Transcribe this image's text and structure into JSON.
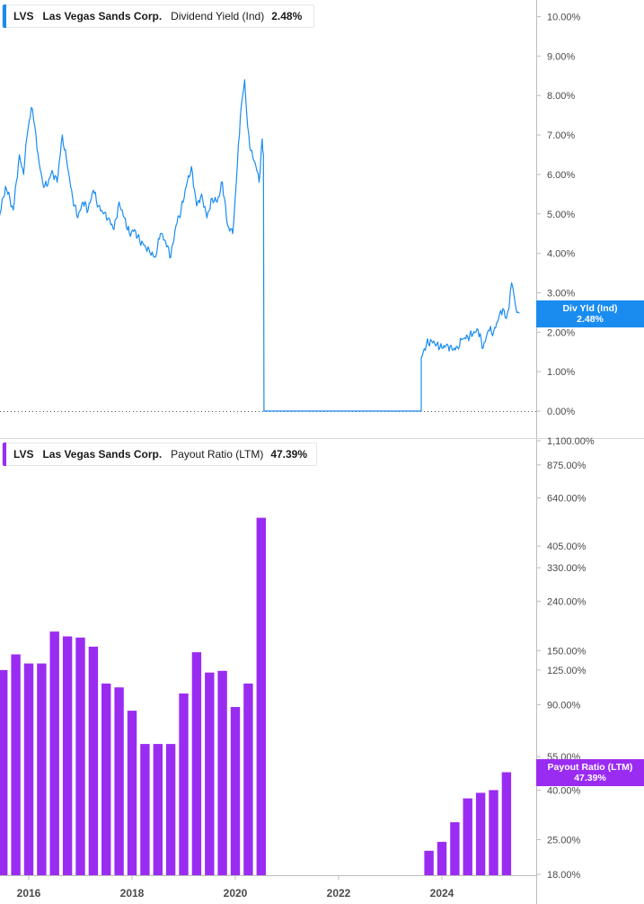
{
  "colors": {
    "yield": "#1a8cf0",
    "payout": "#9a2cf2",
    "axis": "#bdbdbd",
    "text": "#4a4a4a"
  },
  "legend_top": {
    "ticker": "LVS",
    "name": "Las Vegas Sands Corp.",
    "metric": "Dividend Yield (Ind)",
    "value": "2.48%"
  },
  "legend_bottom": {
    "ticker": "LVS",
    "name": "Las Vegas Sands Corp.",
    "metric": "Payout Ratio (LTM)",
    "value": "47.39%"
  },
  "tag_top": {
    "title": "Div Yld (Ind)",
    "value": "2.48%"
  },
  "tag_bottom": {
    "title": "Payout Ratio (LTM)",
    "value": "47.39%"
  },
  "chart_data": [
    {
      "type": "line",
      "title": "Dividend Yield (Ind)",
      "series_name": "Div Yld (Ind)",
      "y_ticks": [
        0,
        1,
        2,
        3,
        4,
        5,
        6,
        7,
        8,
        9,
        10
      ],
      "y_tick_labels": [
        "0.00%",
        "1.00%",
        "2.00%",
        "3.00%",
        "4.00%",
        "5.00%",
        "6.00%",
        "7.00%",
        "8.00%",
        "9.00%",
        "10.00%"
      ],
      "ylim": [
        0,
        10.3
      ],
      "last_value": 2.48,
      "x": [
        2015.3,
        2015.4,
        2015.55,
        2015.7,
        2015.82,
        2015.9,
        2015.97,
        2016.05,
        2016.12,
        2016.2,
        2016.27,
        2016.35,
        2016.45,
        2016.55,
        2016.65,
        2016.75,
        2016.85,
        2016.95,
        2017.05,
        2017.15,
        2017.25,
        2017.35,
        2017.45,
        2017.55,
        2017.65,
        2017.75,
        2017.85,
        2017.95,
        2018.05,
        2018.15,
        2018.25,
        2018.35,
        2018.45,
        2018.55,
        2018.65,
        2018.75,
        2018.85,
        2018.95,
        2019.05,
        2019.15,
        2019.25,
        2019.35,
        2019.45,
        2019.55,
        2019.65,
        2019.75,
        2019.85,
        2019.95,
        2020.02,
        2020.1,
        2020.18,
        2020.24,
        2020.3,
        2020.4,
        2020.46,
        2020.52,
        2020.545,
        2020.555,
        2020.6,
        2023.6,
        2023.6,
        2023.7,
        2023.8,
        2023.9,
        2024.0,
        2024.1,
        2024.2,
        2024.3,
        2024.4,
        2024.5,
        2024.6,
        2024.7,
        2024.8,
        2024.9,
        2025.0,
        2025.1,
        2025.18,
        2025.25,
        2025.3,
        2025.35,
        2025.4,
        2025.45,
        2025.5
      ],
      "values": [
        5.2,
        4.7,
        5.7,
        5.1,
        6.5,
        6.0,
        7.0,
        7.7,
        7.2,
        6.3,
        5.8,
        5.7,
        6.1,
        5.8,
        7.0,
        6.2,
        5.4,
        4.9,
        5.3,
        5.1,
        5.6,
        5.2,
        5.0,
        4.9,
        4.6,
        5.3,
        4.9,
        4.5,
        4.6,
        4.3,
        4.2,
        4.0,
        3.9,
        4.5,
        4.3,
        3.9,
        4.7,
        5.1,
        5.7,
        6.2,
        5.2,
        5.5,
        4.9,
        5.4,
        5.3,
        5.8,
        4.7,
        4.5,
        5.8,
        7.5,
        8.4,
        7.2,
        6.6,
        6.2,
        5.8,
        6.9,
        6.5,
        0.0,
        0.0,
        0.0,
        1.35,
        1.7,
        1.78,
        1.7,
        1.6,
        1.7,
        1.55,
        1.62,
        1.82,
        1.88,
        1.95,
        2.05,
        1.6,
        2.05,
        2.0,
        2.35,
        2.6,
        2.35,
        2.6,
        3.25,
        2.9,
        2.5,
        2.48
      ]
    },
    {
      "type": "bar",
      "title": "Payout Ratio (LTM)",
      "series_name": "Payout Ratio (LTM)",
      "y_scale": "log",
      "y_ticks": [
        18,
        25,
        40,
        55,
        90,
        125,
        150,
        240,
        330,
        405,
        640,
        875,
        1100
      ],
      "y_tick_labels": [
        "18.00%",
        "25.00%",
        "40.00%",
        "55.00%",
        "90.00%",
        "125.00%",
        "150.00%",
        "240.00%",
        "330.00%",
        "405.00%",
        "640.00%",
        "875.00%",
        "1,100.00%"
      ],
      "ylim": [
        18,
        1100
      ],
      "last_value": 47.39,
      "x_tick_labels": [
        "2016",
        "2018",
        "2020",
        "2022",
        "2024"
      ],
      "x_ticks": [
        2016,
        2018,
        2020,
        2022,
        2024
      ],
      "x": [
        2015.5,
        2015.75,
        2016.0,
        2016.25,
        2016.5,
        2016.75,
        2017.0,
        2017.25,
        2017.5,
        2017.75,
        2018.0,
        2018.25,
        2018.5,
        2018.75,
        2019.0,
        2019.25,
        2019.5,
        2019.75,
        2020.0,
        2020.25,
        2020.5,
        2023.75,
        2024.0,
        2024.25,
        2024.5,
        2024.75,
        2025.0,
        2025.25
      ],
      "values": [
        125,
        145,
        133,
        133,
        180,
        172,
        170,
        156,
        110,
        106,
        85,
        62,
        62,
        62,
        100,
        148,
        122,
        124,
        88,
        110,
        530,
        22.5,
        24.5,
        29.5,
        37,
        39,
        40,
        47.39
      ]
    }
  ]
}
